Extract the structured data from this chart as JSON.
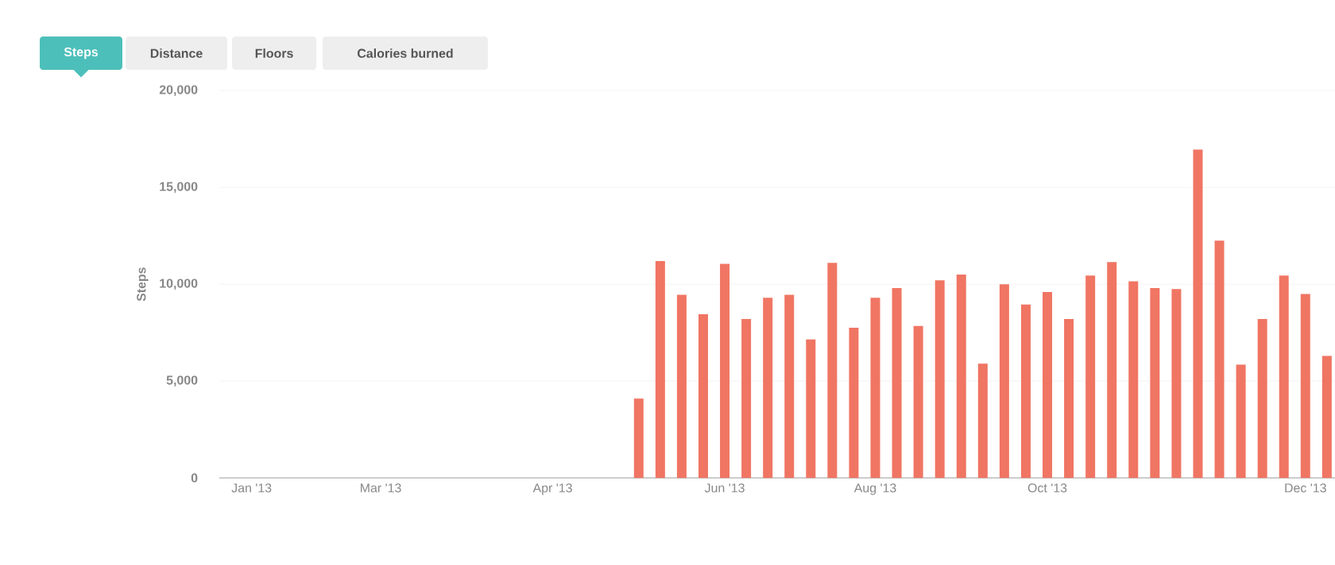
{
  "chart_data": {
    "type": "bar",
    "ylabel": "Steps",
    "annotations": [
      "Steps",
      "Distance",
      "Floors",
      "Calories burned"
    ],
    "categories": [
      null,
      "Jan '13",
      null,
      null,
      null,
      null,
      null,
      "Mar '13",
      null,
      null,
      null,
      null,
      null,
      null,
      null,
      "Apr '13",
      null,
      null,
      null,
      null,
      null,
      null,
      null,
      "Jun '13",
      null,
      null,
      null,
      null,
      null,
      null,
      "Aug '13",
      null,
      null,
      null,
      null,
      null,
      null,
      null,
      "Oct '13",
      null,
      null,
      null,
      null,
      null,
      null,
      null,
      null,
      null,
      null,
      null,
      "Dec '13",
      null
    ],
    "values": [
      null,
      null,
      null,
      null,
      null,
      null,
      null,
      null,
      null,
      null,
      null,
      null,
      null,
      null,
      null,
      null,
      null,
      null,
      null,
      4100,
      11200,
      9450,
      8450,
      11050,
      8200,
      9300,
      9450,
      7150,
      11100,
      7750,
      9300,
      9800,
      7850,
      10200,
      10500,
      5900,
      10000,
      8950,
      9600,
      8200,
      10450,
      11150,
      10150,
      9800,
      9750,
      16950,
      12250,
      5850,
      8200,
      10450,
      9500,
      6300
    ],
    "color": "#f07563",
    "ylim": [
      0,
      20000
    ],
    "yticks": [
      0,
      {
        "value": 5000,
        "label": "5,000"
      },
      {
        "value": 10000,
        "label": "10,000"
      },
      {
        "value": 15000,
        "label": "15,000"
      },
      {
        "value": 20000,
        "label": "20,000"
      }
    ],
    "grid": "y"
  }
}
